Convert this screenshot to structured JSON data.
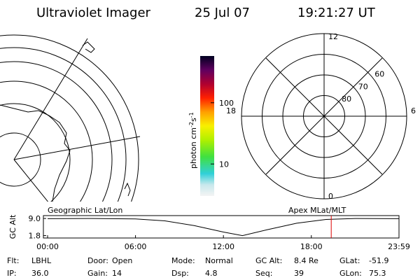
{
  "header": {
    "title": "Ultraviolet Imager",
    "date": "25 Jul 07",
    "time": "19:21:27 UT"
  },
  "colorbar": {
    "unit": "photon cm",
    "unit_exp1": "-2",
    "unit_mid": "s",
    "unit_exp2": "-1",
    "log": true,
    "lim": [
      3,
      580
    ],
    "ticks": [
      10,
      100
    ]
  },
  "polar": {
    "lat_lim": [
      90,
      50
    ],
    "rings": [
      60,
      70,
      80
    ],
    "mlt_labels": [
      {
        "value": 12,
        "label": "12"
      },
      {
        "value": 6,
        "label": "6"
      },
      {
        "value": 0,
        "label": "0"
      },
      {
        "value": 18,
        "label": "18"
      }
    ]
  },
  "strip": {
    "ylabel": "GC Alt",
    "left_label": "Geographic Lat/Lon",
    "right_label": "Apex MLat/MLT",
    "xlim": [
      0,
      23.983
    ],
    "ylim": [
      0.8,
      10.2
    ],
    "xticks": [
      {
        "value": 0,
        "label": "00:00"
      },
      {
        "value": 6,
        "label": "06:00"
      },
      {
        "value": 12,
        "label": "12:00"
      },
      {
        "value": 18,
        "label": "18:00"
      },
      {
        "value": 23.983,
        "label": "23:59"
      }
    ],
    "yticks": [
      {
        "value": 9,
        "label": "9.0"
      },
      1.8
    ],
    "x": [
      0,
      3,
      6,
      8,
      10,
      12,
      13.3,
      15,
      17,
      19,
      21,
      23.983
    ],
    "values": [
      8.9,
      9.0,
      8.8,
      8.0,
      6.0,
      3.3,
      1.8,
      4.3,
      7.0,
      8.6,
      9.0,
      8.9
    ],
    "marker_hour": 19.358,
    "marker_color": "#dd0000"
  },
  "params": [
    [
      [
        "Flt:",
        "LBHL"
      ],
      [
        "Door:",
        "Open"
      ],
      [
        "Mode:",
        "Normal"
      ],
      [
        "GC Alt:",
        "8.4 Re"
      ],
      [
        "GLat:",
        "-51.9"
      ]
    ],
    [
      [
        "IP:",
        "36.0"
      ],
      [
        "Gain:",
        "14"
      ],
      [
        "Dsp:",
        "4.8"
      ],
      [
        "Seq:",
        "39"
      ],
      [
        "GLon:",
        "75.3"
      ]
    ]
  ]
}
